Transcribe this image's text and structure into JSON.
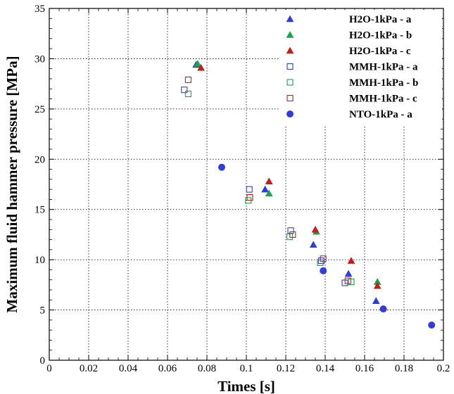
{
  "chart_data": {
    "type": "scatter",
    "title": "",
    "xlabel": "Times [s]",
    "ylabel": "Maximum fluid hammer pressure [MPa]",
    "xlim": [
      0,
      0.2
    ],
    "ylim": [
      0,
      35
    ],
    "xticks": [
      0,
      0.02,
      0.04,
      0.06,
      0.08,
      0.1,
      0.12,
      0.14,
      0.16,
      0.18,
      0.2
    ],
    "yticks": [
      0,
      5,
      10,
      15,
      20,
      25,
      30,
      35
    ],
    "xtick_labels": [
      "0",
      "0.02",
      "0.04",
      "0.06",
      "0.08",
      "0.1",
      "0.12",
      "0.14",
      "0.16",
      "0.18",
      "0.2"
    ],
    "ytick_labels": [
      "0",
      "5",
      "10",
      "15",
      "20",
      "25",
      "30",
      "35"
    ],
    "grid": true,
    "legend_position": "top-right",
    "series": [
      {
        "name": "H2O-1kPa - a",
        "marker": "triangle-filled",
        "color": "#2f3de0",
        "x": [
          0.0745,
          0.1095,
          0.134,
          0.1518,
          0.1658
        ],
        "y": [
          29.4,
          17.0,
          11.5,
          8.6,
          5.9
        ]
      },
      {
        "name": "H2O-1kPa - b",
        "marker": "triangle-filled",
        "color": "#1aa34a",
        "x": [
          0.0753,
          0.1115,
          0.1355,
          0.1665
        ],
        "y": [
          29.5,
          16.6,
          12.8,
          7.8
        ]
      },
      {
        "name": "H2O-1kPa - c",
        "marker": "triangle-filled",
        "color": "#cc1a1a",
        "x": [
          0.077,
          0.1115,
          0.135,
          0.1532,
          0.1665
        ],
        "y": [
          29.1,
          17.8,
          13.0,
          9.9,
          7.4
        ]
      },
      {
        "name": "MMH-1kPa - a",
        "marker": "square-open",
        "color": "#2f3de0",
        "x": [
          0.0685,
          0.1015,
          0.1225,
          0.138,
          0.15
        ],
        "y": [
          26.9,
          17.0,
          12.9,
          9.9,
          7.7
        ]
      },
      {
        "name": "MMH-1kPa - b",
        "marker": "square-open",
        "color": "#1aa34a",
        "x": [
          0.0705,
          0.101,
          0.122,
          0.1375,
          0.1532
        ],
        "y": [
          26.5,
          15.9,
          12.3,
          9.7,
          7.8
        ]
      },
      {
        "name": "MMH-1kPa - c",
        "marker": "square-open",
        "color": "#cc1a1a",
        "x": [
          0.0705,
          0.1018,
          0.1235,
          0.139,
          0.1515
        ],
        "y": [
          27.9,
          16.2,
          12.5,
          10.1,
          7.9
        ]
      },
      {
        "name": "NTO-1kPa - a",
        "marker": "circle-filled",
        "color": "#2f3de0",
        "x": [
          0.0875,
          0.139,
          0.1695,
          0.194
        ],
        "y": [
          19.2,
          8.9,
          5.1,
          3.5
        ]
      }
    ]
  }
}
